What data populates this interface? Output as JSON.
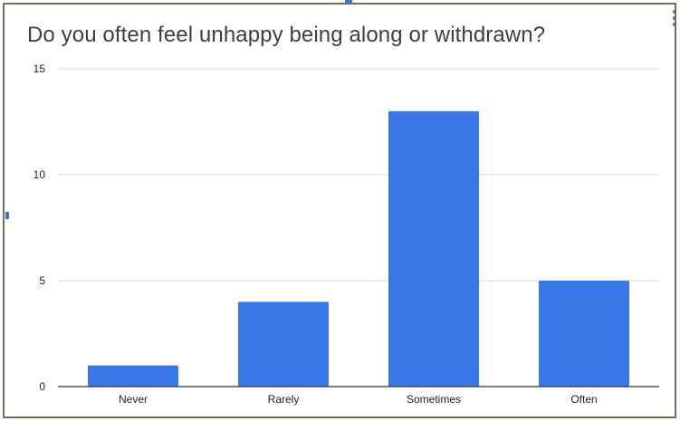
{
  "chart_data": {
    "type": "bar",
    "title": "Do you often feel unhappy being along or withdrawn?",
    "categories": [
      "Never",
      "Rarely",
      "Sometimes",
      "Often"
    ],
    "values": [
      1,
      4,
      13,
      5
    ],
    "ylim": [
      0,
      15
    ],
    "yticks": [
      0,
      5,
      10,
      15
    ],
    "xlabel": "",
    "ylabel": "",
    "grid": true,
    "legend": "none",
    "colors": {
      "bar": "#3b78e7",
      "grid": "#d9d9d9",
      "axis": "#333333",
      "text": "#222222",
      "title": "#3c4043"
    }
  },
  "menu": {
    "icon": "more-vert-icon"
  }
}
